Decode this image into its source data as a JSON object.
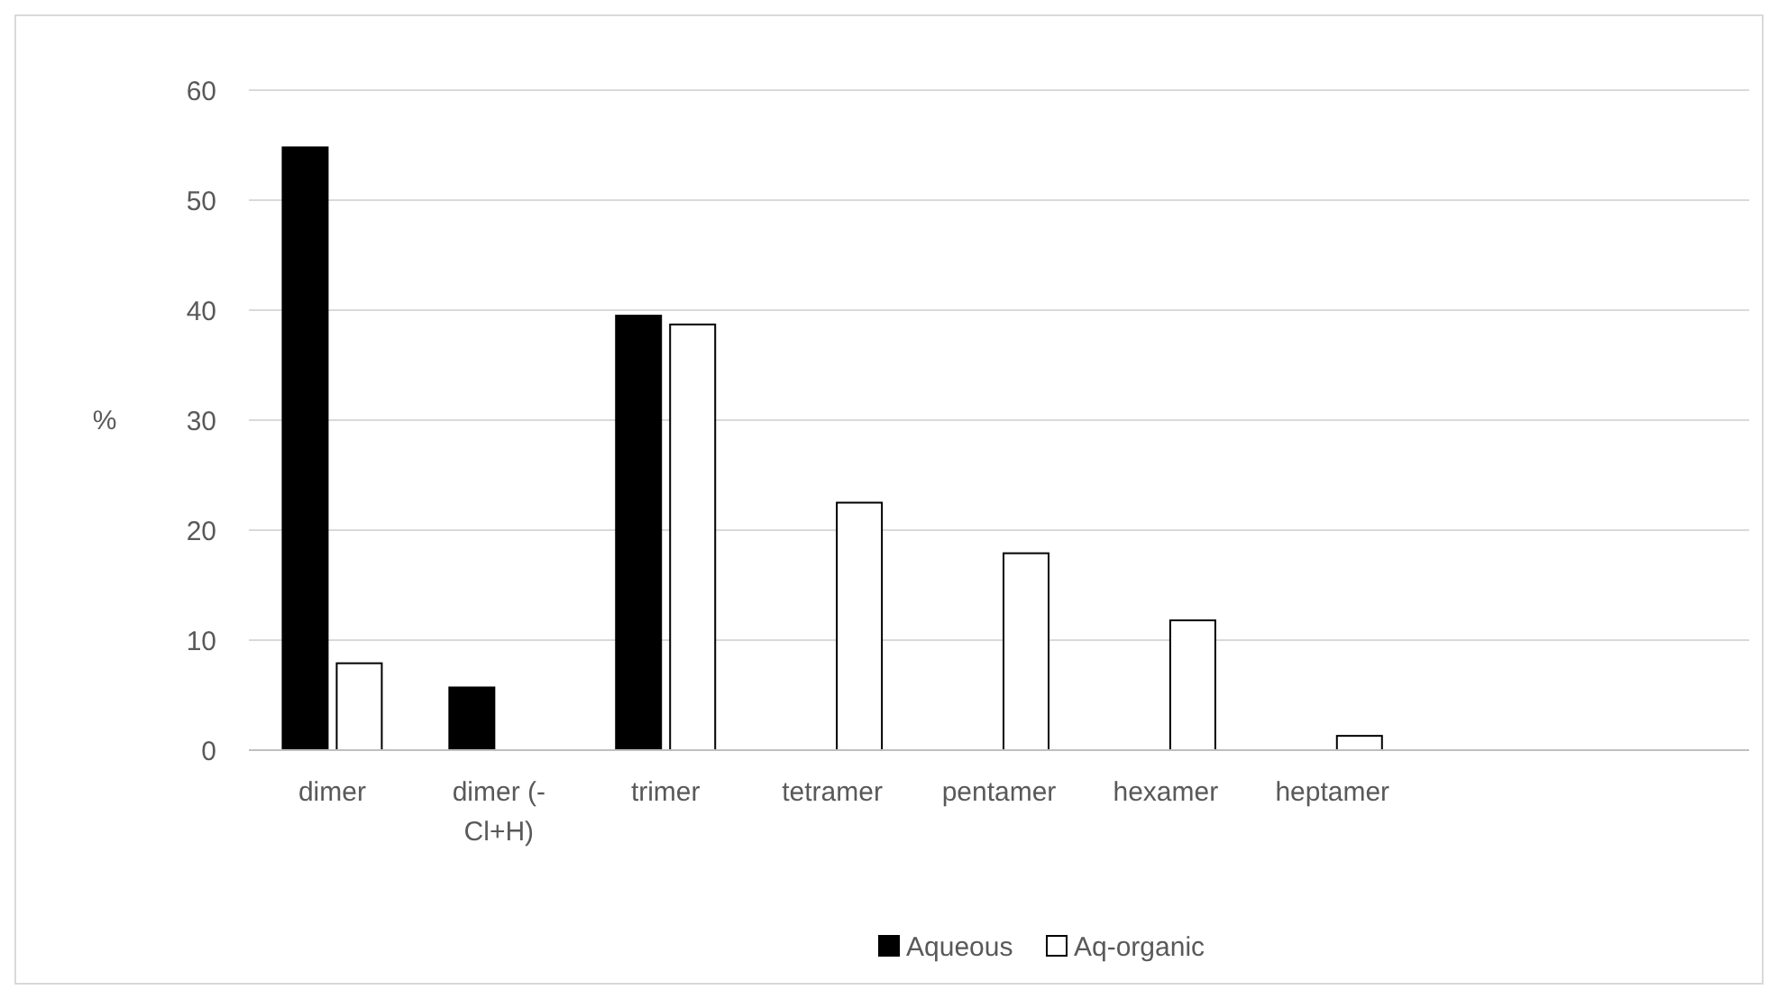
{
  "chart_data": {
    "type": "bar",
    "ylabel": "%",
    "categories": [
      "dimer",
      "dimer (-Cl+H)",
      "trimer",
      "tetramer",
      "pentamer",
      "hexamer",
      "heptamer",
      null,
      null
    ],
    "series": [
      {
        "name": "Aqueous",
        "color": "#000000",
        "values": [
          54.8,
          5.7,
          39.5,
          null,
          null,
          null,
          null,
          null,
          null
        ]
      },
      {
        "name": "Aq-organic",
        "color": "#ffffff",
        "values": [
          7.9,
          null,
          38.7,
          22.5,
          17.9,
          11.8,
          1.3,
          null,
          null
        ]
      }
    ],
    "ylim": [
      0,
      60
    ],
    "yticks": [
      0,
      10,
      20,
      30,
      40,
      50,
      60
    ],
    "grid": "y",
    "legend": "bottom"
  }
}
